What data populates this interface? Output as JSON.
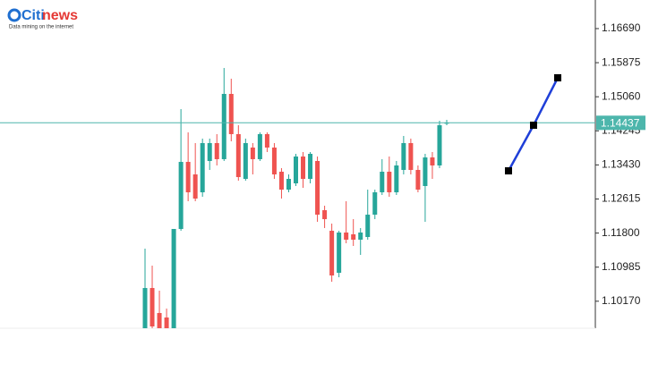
{
  "header": {
    "brand_a": "Citi",
    "brand_b": "news",
    "tagline": "Data mining on the internet"
  },
  "chart_data": {
    "type": "candlestick",
    "up_color": "#26a69a",
    "down_color": "#ef5350",
    "open": [
      1.09524,
      1.10486,
      1.09888,
      1.09781,
      1.09524,
      1.11898,
      1.13502,
      1.13203,
      1.12775,
      1.13524,
      1.13952,
      1.13567,
      1.15128,
      1.14166,
      1.13096,
      1.13845,
      1.13567,
      1.14166,
      1.13845,
      1.13267,
      1.12839,
      1.12989,
      1.13631,
      1.13096,
      1.13524,
      1.12347,
      1.11855,
      1.1085,
      1.11813,
      1.1177,
      1.11642,
      1.11706,
      1.1224,
      1.12775,
      1.13267,
      1.12775,
      1.1331,
      1.13952,
      1.1331,
      1.12925,
      1.13609,
      1.13417,
      1.14422
    ],
    "high": [
      1.11428,
      1.11021,
      1.10422,
      1.09994,
      1.11898,
      1.14764,
      1.14208,
      1.13952,
      1.14059,
      1.14059,
      1.14166,
      1.15748,
      1.15492,
      1.14379,
      1.14059,
      1.13952,
      1.14208,
      1.14208,
      1.13952,
      1.13353,
      1.13203,
      1.13695,
      1.13738,
      1.13738,
      1.13631,
      1.12454,
      1.12027,
      1.11855,
      1.12561,
      1.12133,
      1.1192,
      1.12839,
      1.12839,
      1.13567,
      1.13631,
      1.13524,
      1.14123,
      1.14059,
      1.13417,
      1.13695,
      1.13738,
      1.14486,
      1.14508
    ],
    "low": [
      1.09524,
      1.09524,
      1.09524,
      1.09524,
      1.09524,
      1.11855,
      1.12561,
      1.12561,
      1.12668,
      1.1331,
      1.13417,
      1.13524,
      1.13994,
      1.13053,
      1.13053,
      1.13203,
      1.13524,
      1.13738,
      1.13096,
      1.12625,
      1.12775,
      1.12925,
      1.12882,
      1.12989,
      1.12069,
      1.1192,
      1.10636,
      1.10743,
      1.11556,
      1.11492,
      1.11278,
      1.11642,
      1.12133,
      1.12711,
      1.12668,
      1.12711,
      1.13203,
      1.13203,
      1.12775,
      1.12069,
      1.13096,
      1.13353,
      1.14379
    ],
    "close": [
      1.10486,
      1.09567,
      1.09524,
      1.09524,
      1.11898,
      1.13502,
      1.12775,
      1.12625,
      1.13952,
      1.13952,
      1.13567,
      1.15128,
      1.14166,
      1.13139,
      1.13952,
      1.13567,
      1.14166,
      1.13845,
      1.13203,
      1.12839,
      1.13096,
      1.13631,
      1.13096,
      1.13695,
      1.1224,
      1.12133,
      1.10786,
      1.11813,
      1.11642,
      1.11642,
      1.11813,
      1.1224,
      1.12775,
      1.13267,
      1.12775,
      1.13417,
      1.13952,
      1.1331,
      1.12839,
      1.13609,
      1.13417,
      1.14379,
      1.14437
    ],
    "ylim": [
      1.09524,
      1.17374
    ],
    "yticks": [
      {
        "value": 1.1669,
        "label": "1.16690"
      },
      1.15875,
      {
        "value": 1.1506,
        "label": "1.15060"
      },
      1.14245,
      {
        "value": 1.1343,
        "label": "1.13430"
      },
      1.12615,
      {
        "value": 1.118,
        "label": "1.11800"
      },
      1.10985,
      {
        "value": 1.1017,
        "label": "1.10170"
      }
    ],
    "price_line": {
      "value": 1.14437,
      "color": "#4db6ac"
    },
    "trend_line": {
      "color": "#1f3fd8",
      "values": [
        1.13288,
        1.14379,
        1.15513
      ]
    }
  }
}
